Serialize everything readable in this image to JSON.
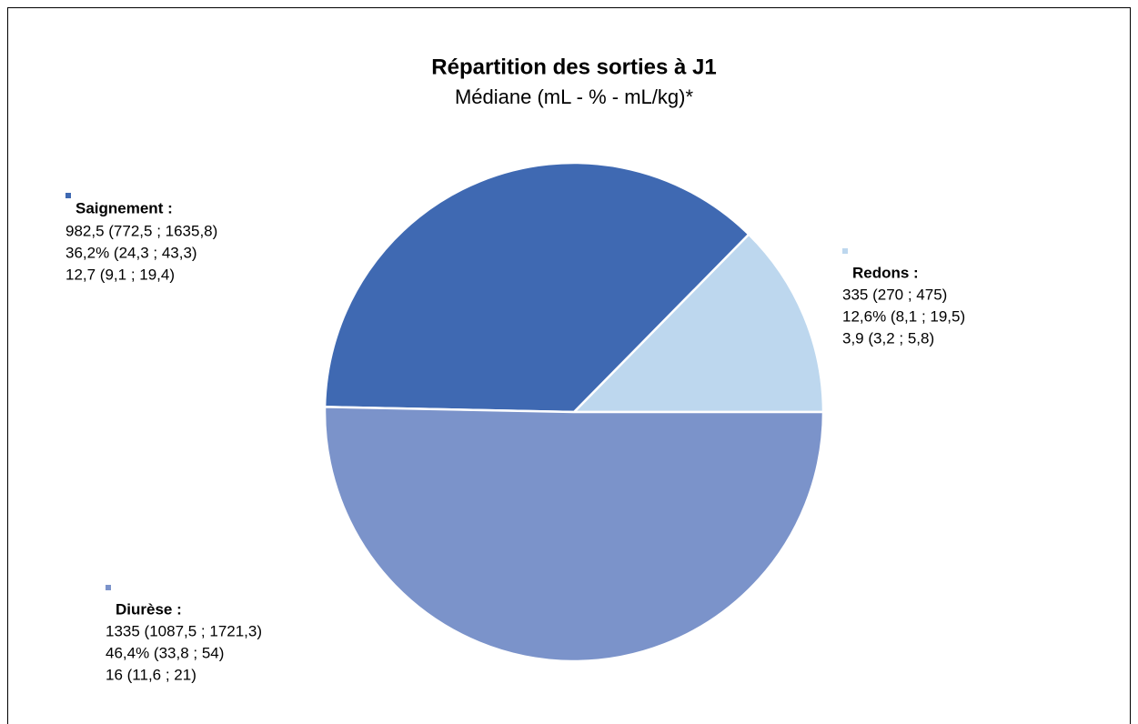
{
  "chart_data": {
    "type": "pie",
    "title": "Répartition des sorties à J1",
    "subtitle": "Médiane (mL - % - mL/kg)*",
    "categories": [
      "Redons :",
      "Saignement :",
      "Diurèse :"
    ],
    "values": [
      335,
      982.5,
      1335
    ],
    "value_labels": [
      "335 (270 ; 475)",
      "982,5 (772,5 ; 1635,8)",
      "1335 (1087,5 ; 1721,3)"
    ],
    "details": [
      [
        "12,6% (8,1 ; 19,5)",
        "3,9 (3,2 ; 5,8)"
      ],
      [
        "36,2% (24,3 ; 43,3)",
        "12,7 (9,1 ; 19,4)"
      ],
      [
        "46,4% (33,8 ; 54)",
        "16 (11,6 ; 21)"
      ]
    ],
    "colors": [
      "#bdd7ee",
      "#3f69b2",
      "#7b93ca"
    ]
  }
}
